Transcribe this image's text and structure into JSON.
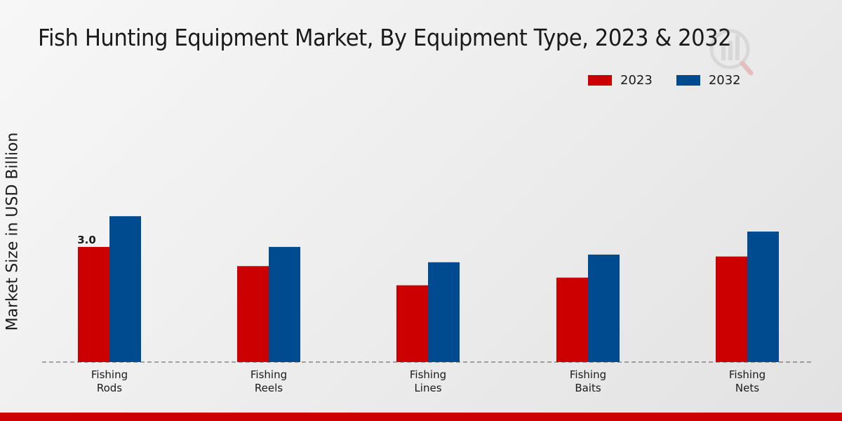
{
  "chart_data": {
    "type": "bar",
    "title": "Fish Hunting Equipment Market, By Equipment Type, 2023 & 2032",
    "xlabel": "",
    "ylabel": "Market Size in USD Billion",
    "categories": [
      "Fishing Rods",
      "Fishing Reels",
      "Fishing Lines",
      "Fishing Baits",
      "Fishing Nets"
    ],
    "category_lines": [
      [
        "Fishing",
        "Rods"
      ],
      [
        "Fishing",
        "Reels"
      ],
      [
        "Fishing",
        "Lines"
      ],
      [
        "Fishing",
        "Baits"
      ],
      [
        "Fishing",
        "Nets"
      ]
    ],
    "series": [
      {
        "name": "2023",
        "color": "#cc0000",
        "values": [
          3.0,
          2.5,
          2.0,
          2.2,
          2.75
        ]
      },
      {
        "name": "2032",
        "color": "#004a8f",
        "values": [
          3.8,
          3.0,
          2.6,
          2.8,
          3.4
        ]
      }
    ],
    "data_labels": [
      {
        "series": 0,
        "index": 0,
        "text": "3.0"
      }
    ],
    "ylim": [
      0,
      6
    ],
    "grid": false,
    "legend_position": "top-right"
  }
}
